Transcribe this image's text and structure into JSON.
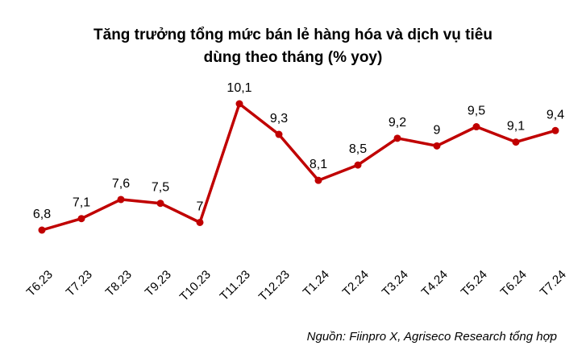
{
  "title_line1": "Tăng trưởng tổng mức bán lẻ hàng hóa và dịch vụ tiêu",
  "title_line2": "dùng theo tháng (% yoy)",
  "source": "Nguồn: Fiinpro X, Agriseco Research tổng hợp",
  "chart_data": {
    "type": "line",
    "title": "Tăng trưởng tổng mức bán lẻ hàng hóa và dịch vụ tiêu dùng theo tháng (% yoy)",
    "categories": [
      "T6.23",
      "T7.23",
      "T8.23",
      "T9.23",
      "T10.23",
      "T11.23",
      "T12.23",
      "T1.24",
      "T2.24",
      "T3.24",
      "T4.24",
      "T5.24",
      "T6.24",
      "T7.24"
    ],
    "series": [
      {
        "values": [
          6.8,
          7.1,
          7.6,
          7.5,
          7,
          10.1,
          9.3,
          8.1,
          8.5,
          9.2,
          9,
          9.5,
          9.1,
          9.4
        ],
        "labels": [
          "6,8",
          "7,1",
          "7,6",
          "7,5",
          "7",
          "10,1",
          "9,3",
          "8,1",
          "8,5",
          "9,2",
          "9",
          "9,5",
          "9,1",
          "9,4"
        ]
      }
    ],
    "xlabel": "",
    "ylabel": "",
    "grid": false,
    "legend": "none",
    "line_color": "#C00000"
  }
}
